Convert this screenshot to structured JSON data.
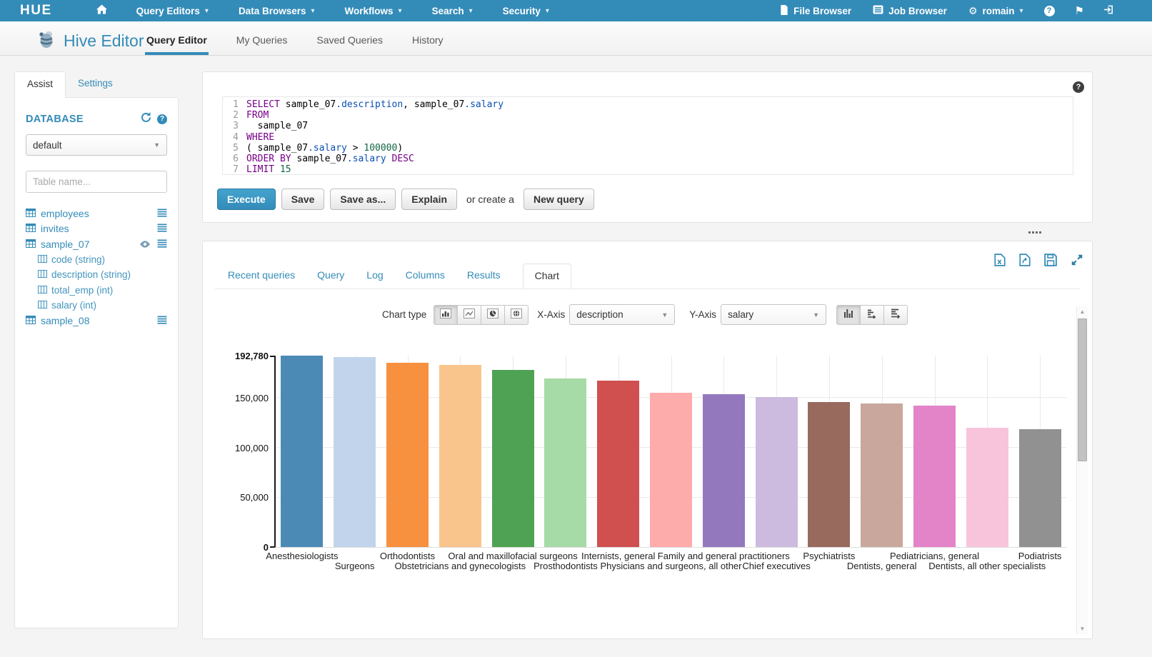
{
  "topnav": {
    "logo": "HUE",
    "menus": [
      "Query Editors",
      "Data Browsers",
      "Workflows",
      "Search",
      "Security"
    ],
    "file_browser": "File Browser",
    "job_browser": "Job Browser",
    "user": "romain"
  },
  "header": {
    "app_title": "Hive Editor",
    "tabs": [
      {
        "label": "Query Editor",
        "active": true
      },
      {
        "label": "My Queries",
        "active": false
      },
      {
        "label": "Saved Queries",
        "active": false
      },
      {
        "label": "History",
        "active": false
      }
    ]
  },
  "sidebar": {
    "tabs": [
      "Assist",
      "Settings"
    ],
    "database_label": "DATABASE",
    "database_value": "default",
    "table_filter_placeholder": "Table name...",
    "tables": [
      {
        "name": "employees",
        "has_preview": false,
        "columns": []
      },
      {
        "name": "invites",
        "has_preview": false,
        "columns": []
      },
      {
        "name": "sample_07",
        "has_preview": true,
        "columns": [
          "code (string)",
          "description (string)",
          "total_emp (int)",
          "salary (int)"
        ]
      },
      {
        "name": "sample_08",
        "has_preview": false,
        "columns": []
      }
    ]
  },
  "editor": {
    "lines": [
      [
        [
          "SELECT",
          "k"
        ],
        [
          " sample_07",
          ""
        ],
        [
          ".description",
          "v"
        ],
        [
          ", sample_07",
          ""
        ],
        [
          ".salary",
          "v"
        ]
      ],
      [
        [
          "FROM",
          "k"
        ]
      ],
      [
        [
          "  sample_07",
          ""
        ]
      ],
      [
        [
          "WHERE",
          "k"
        ]
      ],
      [
        [
          "( sample_07",
          ""
        ],
        [
          ".salary",
          "v"
        ],
        [
          " > ",
          ""
        ],
        [
          "100000",
          "n"
        ],
        [
          ")",
          ""
        ]
      ],
      [
        [
          "ORDER BY",
          "k"
        ],
        [
          " sample_07",
          ""
        ],
        [
          ".salary",
          "v"
        ],
        [
          " ",
          ""
        ],
        [
          "DESC",
          "k"
        ]
      ],
      [
        [
          "LIMIT",
          "k"
        ],
        [
          " ",
          ""
        ],
        [
          "15",
          "n"
        ]
      ]
    ]
  },
  "actions": {
    "execute": "Execute",
    "save": "Save",
    "save_as": "Save as...",
    "explain": "Explain",
    "or_create": "or create a",
    "new_query": "New query"
  },
  "results": {
    "tabs": [
      "Recent queries",
      "Query",
      "Log",
      "Columns",
      "Results",
      "Chart"
    ],
    "active_tab": "Chart",
    "toolbar_icons": [
      "excel-export",
      "document-export",
      "save-results",
      "fullscreen"
    ]
  },
  "chart_controls": {
    "chart_type_label": "Chart type",
    "type_icons": [
      "bars",
      "lines",
      "pie",
      "map"
    ],
    "active_type": "bars",
    "x_axis_label": "X-Axis",
    "x_axis_value": "description",
    "y_axis_label": "Y-Axis",
    "y_axis_value": "salary",
    "orientation_icons": [
      "vertical-bars",
      "sorted-bars",
      "stacked-bars"
    ],
    "active_orientation": "vertical-bars"
  },
  "chart_data": {
    "type": "bar",
    "title": "",
    "xlabel": "description",
    "ylabel": "salary",
    "categories": [
      "Anesthesiologists",
      "Surgeons",
      "Orthodontists",
      "Obstetricians and gynecologists",
      "Oral and maxillofacial surgeons",
      "Prosthodontists",
      "Internists, general",
      "Physicians and surgeons, all other",
      "Family and general practitioners",
      "Chief executives",
      "Psychiatrists",
      "Dentists, general",
      "Pediatricians, general",
      "Dentists, all other specialists",
      "Podiatrists"
    ],
    "values": [
      192780,
      191410,
      185340,
      183600,
      178440,
      169810,
      167270,
      155150,
      153640,
      151370,
      146150,
      144950,
      142585,
      120360,
      118500
    ],
    "colors": [
      "#4c8ab6",
      "#c1d4eb",
      "#f7913f",
      "#fac58c",
      "#4fa254",
      "#a6daa6",
      "#d04f4f",
      "#fdabab",
      "#9478bd",
      "#ccbbdf",
      "#976a5d",
      "#c9a79d",
      "#e383c8",
      "#f7c4db",
      "#919191"
    ],
    "ylim": [
      0,
      192780
    ],
    "yticks": [
      {
        "label": "192,780",
        "value": 192780,
        "bold": true
      },
      {
        "label": "150,000",
        "value": 150000,
        "bold": false
      },
      {
        "label": "100,000",
        "value": 100000,
        "bold": false
      },
      {
        "label": "50,000",
        "value": 50000,
        "bold": false
      },
      {
        "label": "0",
        "value": 0,
        "bold": true
      }
    ],
    "grid": true,
    "legend": "none",
    "xlabel_rows": "alternate"
  }
}
